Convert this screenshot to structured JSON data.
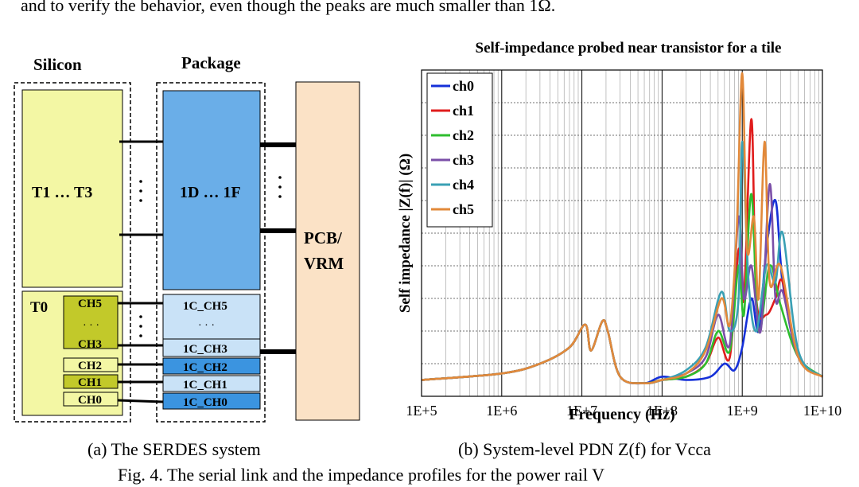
{
  "top_text": "and to verify the behavior, even though the peaks are much smaller than 1Ω.",
  "diagram": {
    "silicon_label": "Silicon",
    "package_label": "Package",
    "t_top_label": "T1 … T3",
    "pkg_top_label": "1D … 1F",
    "pcb_label_line1": "PCB/",
    "pcb_label_line2": "VRM",
    "t0_label": "T0",
    "ellipsis_h": "· · ·",
    "silicon_channels": [
      "CH5",
      "CH3",
      "CH2",
      "CH1",
      "CH0"
    ],
    "package_channels": [
      "1C_CH5",
      "1C_CH3",
      "1C_CH2",
      "1C_CH1",
      "1C_CH0"
    ],
    "colors": {
      "silicon_fill": "#f3f7a4",
      "silicon_dark": "#c2c92a",
      "package_blue": "#6aaee8",
      "package_light": "#c9e2f7",
      "package_mid": "#3b94e0",
      "pcb_fill": "#fbe2c6"
    }
  },
  "chart_data": {
    "type": "line",
    "title": "Self-impedance probed near transistor for a tile",
    "xlabel": "Frequency (Hz)",
    "ylabel": "Self impedance  |Z(f)|  (Ω)",
    "x_scale": "log",
    "xlim": [
      100000,
      10000000000
    ],
    "ylim": [
      0,
      1
    ],
    "x_ticks": [
      "1E+5",
      "1E+6",
      "1E+7",
      "1E+8",
      "1E+9",
      "1E+10"
    ],
    "grid": true,
    "legend_position": "top-left",
    "series": [
      {
        "name": "ch0",
        "color": "#1530d8",
        "points": [
          [
            100000,
            0.05
          ],
          [
            1000000,
            0.07
          ],
          [
            3000000,
            0.1
          ],
          [
            7000000,
            0.15
          ],
          [
            11000000,
            0.22
          ],
          [
            13000000,
            0.14
          ],
          [
            18000000,
            0.23
          ],
          [
            21000000,
            0.2
          ],
          [
            30000000,
            0.06
          ],
          [
            60000000,
            0.04
          ],
          [
            100000000,
            0.06
          ],
          [
            200000000,
            0.05
          ],
          [
            400000000,
            0.06
          ],
          [
            600000000,
            0.1
          ],
          [
            800000000,
            0.08
          ],
          [
            1000000000,
            0.15
          ],
          [
            1300000000,
            0.3
          ],
          [
            1600000000,
            0.2
          ],
          [
            2000000000,
            0.45
          ],
          [
            2600000000,
            0.6
          ],
          [
            3200000000,
            0.35
          ],
          [
            5000000000,
            0.12
          ],
          [
            10000000000,
            0.06
          ]
        ]
      },
      {
        "name": "ch1",
        "color": "#e01c1c",
        "points": [
          [
            100000,
            0.05
          ],
          [
            1000000,
            0.07
          ],
          [
            3000000,
            0.1
          ],
          [
            7000000,
            0.15
          ],
          [
            11000000,
            0.22
          ],
          [
            13000000,
            0.14
          ],
          [
            18000000,
            0.23
          ],
          [
            21000000,
            0.2
          ],
          [
            30000000,
            0.06
          ],
          [
            60000000,
            0.04
          ],
          [
            100000000,
            0.05
          ],
          [
            200000000,
            0.06
          ],
          [
            350000000,
            0.1
          ],
          [
            500000000,
            0.18
          ],
          [
            700000000,
            0.12
          ],
          [
            900000000,
            0.45
          ],
          [
            1050000000,
            0.3
          ],
          [
            1300000000,
            0.85
          ],
          [
            1500000000,
            0.3
          ],
          [
            2000000000,
            0.25
          ],
          [
            2600000000,
            0.3
          ],
          [
            3200000000,
            0.35
          ],
          [
            5000000000,
            0.12
          ],
          [
            10000000000,
            0.06
          ]
        ]
      },
      {
        "name": "ch2",
        "color": "#2ebd2e",
        "points": [
          [
            100000,
            0.05
          ],
          [
            1000000,
            0.07
          ],
          [
            3000000,
            0.1
          ],
          [
            7000000,
            0.15
          ],
          [
            11000000,
            0.22
          ],
          [
            13000000,
            0.14
          ],
          [
            18000000,
            0.23
          ],
          [
            21000000,
            0.2
          ],
          [
            30000000,
            0.06
          ],
          [
            60000000,
            0.04
          ],
          [
            100000000,
            0.05
          ],
          [
            200000000,
            0.06
          ],
          [
            350000000,
            0.1
          ],
          [
            500000000,
            0.2
          ],
          [
            700000000,
            0.14
          ],
          [
            900000000,
            0.4
          ],
          [
            1050000000,
            0.25
          ],
          [
            1300000000,
            0.62
          ],
          [
            1600000000,
            0.2
          ],
          [
            2200000000,
            0.4
          ],
          [
            3000000000,
            0.28
          ],
          [
            5000000000,
            0.12
          ],
          [
            10000000000,
            0.06
          ]
        ]
      },
      {
        "name": "ch3",
        "color": "#7b4fa8",
        "points": [
          [
            100000,
            0.05
          ],
          [
            1000000,
            0.07
          ],
          [
            3000000,
            0.1
          ],
          [
            7000000,
            0.15
          ],
          [
            11000000,
            0.22
          ],
          [
            13000000,
            0.14
          ],
          [
            18000000,
            0.23
          ],
          [
            21000000,
            0.2
          ],
          [
            30000000,
            0.06
          ],
          [
            60000000,
            0.04
          ],
          [
            100000000,
            0.05
          ],
          [
            200000000,
            0.07
          ],
          [
            350000000,
            0.12
          ],
          [
            500000000,
            0.25
          ],
          [
            700000000,
            0.16
          ],
          [
            900000000,
            0.55
          ],
          [
            1050000000,
            0.3
          ],
          [
            1300000000,
            0.4
          ],
          [
            1700000000,
            0.2
          ],
          [
            2200000000,
            0.65
          ],
          [
            2600000000,
            0.3
          ],
          [
            3200000000,
            0.32
          ],
          [
            5000000000,
            0.12
          ],
          [
            10000000000,
            0.06
          ]
        ]
      },
      {
        "name": "ch4",
        "color": "#3aa0b4",
        "points": [
          [
            100000,
            0.05
          ],
          [
            1000000,
            0.07
          ],
          [
            3000000,
            0.1
          ],
          [
            7000000,
            0.15
          ],
          [
            11000000,
            0.22
          ],
          [
            13000000,
            0.14
          ],
          [
            18000000,
            0.23
          ],
          [
            21000000,
            0.2
          ],
          [
            30000000,
            0.06
          ],
          [
            60000000,
            0.04
          ],
          [
            100000000,
            0.05
          ],
          [
            200000000,
            0.08
          ],
          [
            350000000,
            0.15
          ],
          [
            550000000,
            0.32
          ],
          [
            700000000,
            0.2
          ],
          [
            900000000,
            0.3
          ],
          [
            1000000000,
            0.78
          ],
          [
            1200000000,
            0.35
          ],
          [
            1500000000,
            0.2
          ],
          [
            2000000000,
            0.4
          ],
          [
            2600000000,
            0.35
          ],
          [
            3200000000,
            0.5
          ],
          [
            5000000000,
            0.14
          ],
          [
            10000000000,
            0.06
          ]
        ]
      },
      {
        "name": "ch5",
        "color": "#e2893a",
        "points": [
          [
            100000,
            0.05
          ],
          [
            1000000,
            0.07
          ],
          [
            3000000,
            0.1
          ],
          [
            7000000,
            0.15
          ],
          [
            11000000,
            0.22
          ],
          [
            13000000,
            0.14
          ],
          [
            18000000,
            0.23
          ],
          [
            21000000,
            0.2
          ],
          [
            30000000,
            0.06
          ],
          [
            60000000,
            0.04
          ],
          [
            100000000,
            0.05
          ],
          [
            200000000,
            0.07
          ],
          [
            350000000,
            0.14
          ],
          [
            550000000,
            0.3
          ],
          [
            700000000,
            0.22
          ],
          [
            850000000,
            0.5
          ],
          [
            1000000000,
            0.99
          ],
          [
            1150000000,
            0.45
          ],
          [
            1400000000,
            0.55
          ],
          [
            1600000000,
            0.3
          ],
          [
            1900000000,
            0.78
          ],
          [
            2200000000,
            0.35
          ],
          [
            3000000000,
            0.4
          ],
          [
            5000000000,
            0.12
          ],
          [
            10000000000,
            0.06
          ]
        ]
      }
    ]
  },
  "captions": {
    "a": "(a) The SERDES system",
    "b": "(b)  System-level PDN Z(f) for Vcca",
    "fig": "Fig. 4. The serial link and the impedance profiles for the power rail V"
  }
}
